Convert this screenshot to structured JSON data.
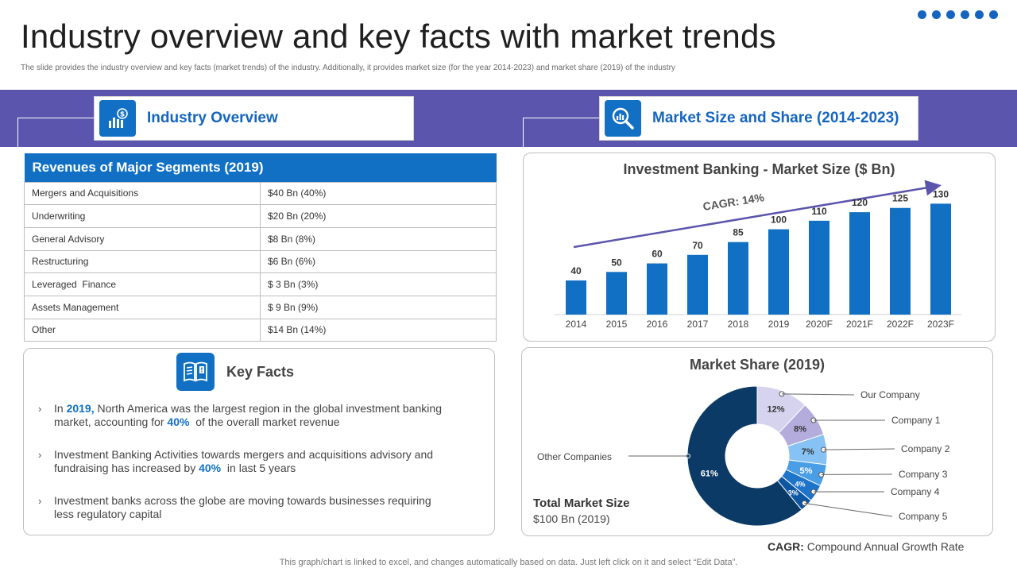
{
  "page": {
    "title": "Industry overview and key facts with market trends",
    "subtitle": "The slide provides the industry overview and key facts (market trends) of the industry. Additionally, it provides market size (for the year 2014-2023) and market share (2019) of the industry"
  },
  "colors": {
    "accent": "#1270c4",
    "band": "#5b55ad",
    "dark_navy": "#0b3a66"
  },
  "sections": {
    "industry_overview": "Industry Overview",
    "market_size_share": "Market Size and Share (2014-2023)"
  },
  "segments": {
    "header": "Revenues of Major Segments (2019)",
    "rows": [
      {
        "name": "Mergers and Acquisitions",
        "value": "$40 Bn (40%)"
      },
      {
        "name": "Underwriting",
        "value": "$20 Bn (20%)"
      },
      {
        "name": "General Advisory",
        "value": "$8 Bn (8%)"
      },
      {
        "name": "Restructuring",
        "value": "$6 Bn (6%)"
      },
      {
        "name": "Leveraged  Finance",
        "value": "$ 3 Bn (3%)"
      },
      {
        "name": "Assets Management",
        "value": "$ 9 Bn (9%)"
      },
      {
        "name": "Other",
        "value": "$14 Bn (14%)"
      }
    ]
  },
  "key_facts": {
    "title": "Key Facts",
    "facts": [
      {
        "pre": "In ",
        "hl1": "2019,",
        "mid": " North America was the largest region in the global investment banking market, accounting for ",
        "hl2": "40%",
        "post": "  of the overall market revenue"
      },
      {
        "pre": "Investment Banking Activities towards mergers and acquisitions advisory and fundraising has increased by ",
        "hl1": "40%",
        "post": "  in last 5 years"
      },
      {
        "pre": "Investment banks across the globe are moving towards businesses requiring less regulatory capital"
      }
    ]
  },
  "chart_data": [
    {
      "type": "bar",
      "title": "Investment Banking - Market Size ($ Bn)",
      "categories": [
        "2014",
        "2015",
        "2016",
        "2017",
        "2018",
        "2019",
        "2020F",
        "2021F",
        "2022F",
        "2023F"
      ],
      "values": [
        40,
        50,
        60,
        70,
        85,
        100,
        110,
        120,
        125,
        130
      ],
      "annotation": "CAGR: 14%",
      "ylim": [
        0,
        135
      ],
      "color": "#1270c4"
    },
    {
      "type": "pie",
      "title": "Market Share (2019)",
      "slices": [
        {
          "label": "Our Company",
          "value": 12,
          "display": "12%",
          "color": "#d6d3ee"
        },
        {
          "label": "Company 1",
          "value": 8,
          "display": "8%",
          "color": "#b3acdc"
        },
        {
          "label": "Company 2",
          "value": 7,
          "display": "7%",
          "color": "#86c2f3"
        },
        {
          "label": "Company 3",
          "value": 5,
          "display": "5%",
          "color": "#4a9ee6"
        },
        {
          "label": "Company 4",
          "value": 4,
          "display": "4%",
          "color": "#1d74c8"
        },
        {
          "label": "Company 5",
          "value": 3,
          "display": "3%",
          "color": "#0d56a3"
        },
        {
          "label": "Other Companies",
          "value": 61,
          "display": "61%",
          "color": "#0b3a66"
        }
      ]
    }
  ],
  "total_market": {
    "title": "Total Market Size",
    "value": "$100 Bn (2019)"
  },
  "footnote": {
    "term": "CAGR:",
    "definition": " Compound Annual Growth Rate"
  },
  "bottom_note": "This graph/chart is linked to excel,  and changes automatically based on data. Just left click on it and select “Edit Data”."
}
